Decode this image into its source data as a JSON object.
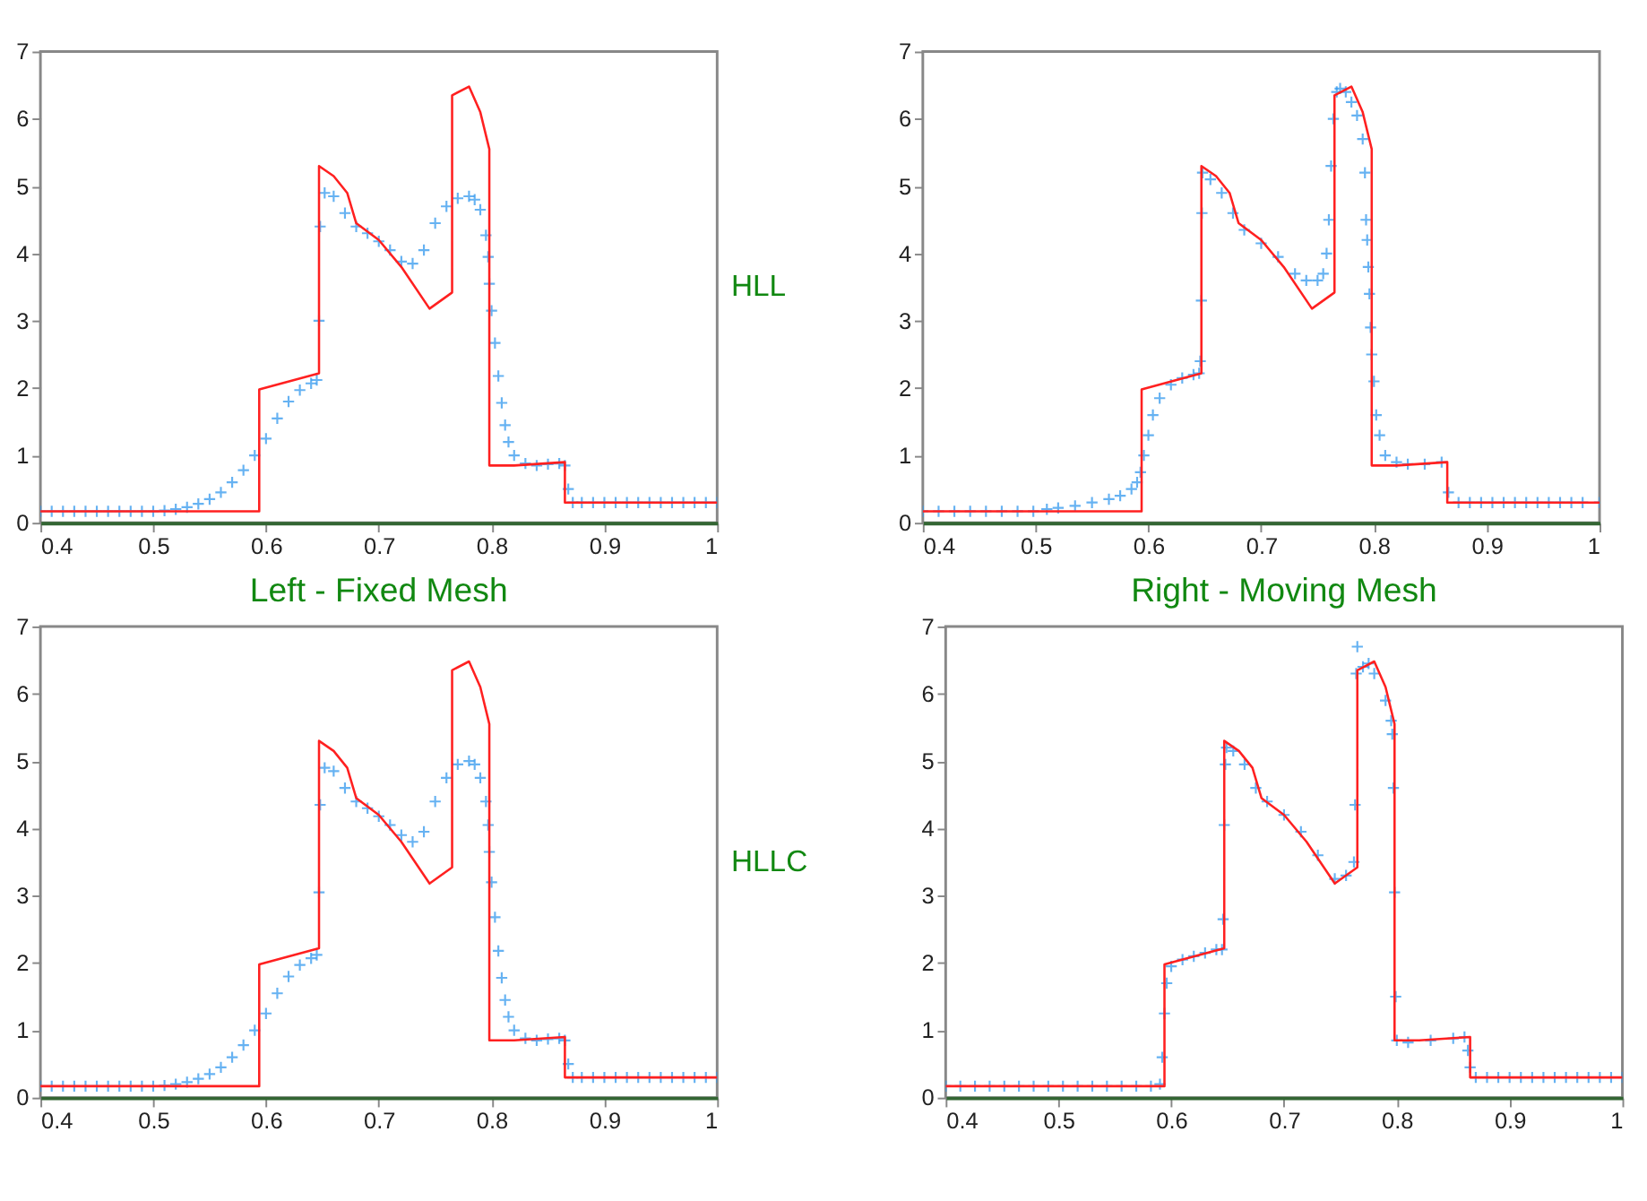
{
  "chart_data": [
    {
      "type": "line",
      "annotations": [
        "HLL"
      ],
      "xlim": [
        0.4,
        1
      ],
      "xticks": [
        0.4,
        0.5,
        0.6,
        0.7,
        0.8,
        0.9,
        1
      ],
      "ylim": [
        0,
        7
      ],
      "yticks": [
        0,
        1,
        2,
        3,
        4,
        5,
        6,
        7
      ],
      "grid": false,
      "series": [
        {
          "color": "#ff2020",
          "x": [
            0.4,
            0.594,
            0.594,
            0.647,
            0.647,
            0.66,
            0.672,
            0.68,
            0.7,
            0.72,
            0.745,
            0.765,
            0.765,
            0.78,
            0.79,
            0.798,
            0.798,
            0.82,
            0.865,
            0.865,
            1
          ],
          "values": [
            0.17,
            0.17,
            1.98,
            2.22,
            5.3,
            5.15,
            4.9,
            4.45,
            4.2,
            3.8,
            3.18,
            3.42,
            6.35,
            6.48,
            6.1,
            5.55,
            0.85,
            0.85,
            0.9,
            0.3,
            0.3
          ]
        },
        {
          "type": "scatter",
          "marker": "cross",
          "color": "#3399ee",
          "x": [
            0.4,
            0.41,
            0.42,
            0.43,
            0.44,
            0.45,
            0.46,
            0.47,
            0.48,
            0.49,
            0.5,
            0.51,
            0.52,
            0.53,
            0.54,
            0.55,
            0.56,
            0.57,
            0.58,
            0.59,
            0.6,
            0.61,
            0.62,
            0.63,
            0.64,
            0.645,
            0.647,
            0.648,
            0.652,
            0.66,
            0.67,
            0.68,
            0.69,
            0.7,
            0.71,
            0.72,
            0.73,
            0.74,
            0.75,
            0.76,
            0.77,
            0.78,
            0.785,
            0.79,
            0.795,
            0.797,
            0.798,
            0.8,
            0.803,
            0.806,
            0.809,
            0.812,
            0.815,
            0.82,
            0.83,
            0.84,
            0.85,
            0.86,
            0.865,
            0.868,
            0.872,
            0.88,
            0.89,
            0.9,
            0.91,
            0.92,
            0.93,
            0.94,
            0.95,
            0.96,
            0.97,
            0.98,
            0.99,
            1
          ],
          "values": [
            0.17,
            0.17,
            0.17,
            0.17,
            0.17,
            0.17,
            0.17,
            0.17,
            0.17,
            0.17,
            0.17,
            0.18,
            0.2,
            0.23,
            0.28,
            0.35,
            0.45,
            0.6,
            0.78,
            1.0,
            1.25,
            1.55,
            1.8,
            1.97,
            2.07,
            2.12,
            3.0,
            4.4,
            4.9,
            4.85,
            4.6,
            4.4,
            4.3,
            4.18,
            4.05,
            3.88,
            3.85,
            4.05,
            4.45,
            4.7,
            4.82,
            4.85,
            4.8,
            4.65,
            4.27,
            3.95,
            3.55,
            3.15,
            2.67,
            2.18,
            1.78,
            1.45,
            1.2,
            1.0,
            0.88,
            0.85,
            0.87,
            0.88,
            0.85,
            0.5,
            0.3,
            0.3,
            0.3,
            0.3,
            0.3,
            0.3,
            0.3,
            0.3,
            0.3,
            0.3,
            0.3,
            0.3,
            0.3,
            0.3
          ]
        }
      ]
    },
    {
      "type": "line",
      "xlim": [
        0.4,
        1
      ],
      "xticks": [
        0.4,
        0.5,
        0.6,
        0.7,
        0.8,
        0.9,
        1
      ],
      "ylim": [
        0,
        7
      ],
      "yticks": [
        0,
        1,
        2,
        3,
        4,
        5,
        6,
        7
      ],
      "grid": false,
      "series": [
        {
          "color": "#ff2020",
          "x": [
            0.4,
            0.594,
            0.594,
            0.647,
            0.647,
            0.66,
            0.672,
            0.68,
            0.7,
            0.72,
            0.745,
            0.765,
            0.765,
            0.78,
            0.79,
            0.798,
            0.798,
            0.82,
            0.865,
            0.865,
            1
          ],
          "values": [
            0.17,
            0.17,
            1.98,
            2.22,
            5.3,
            5.15,
            4.9,
            4.45,
            4.2,
            3.8,
            3.18,
            3.42,
            6.35,
            6.48,
            6.1,
            5.55,
            0.85,
            0.85,
            0.9,
            0.3,
            0.3
          ]
        },
        {
          "type": "scatter",
          "marker": "cross",
          "color": "#3399ee",
          "x": [
            0.4,
            0.414,
            0.428,
            0.442,
            0.456,
            0.47,
            0.484,
            0.498,
            0.51,
            0.52,
            0.535,
            0.55,
            0.565,
            0.575,
            0.585,
            0.59,
            0.593,
            0.596,
            0.6,
            0.604,
            0.61,
            0.62,
            0.63,
            0.64,
            0.645,
            0.646,
            0.647,
            0.6475,
            0.648,
            0.655,
            0.665,
            0.675,
            0.685,
            0.7,
            0.715,
            0.73,
            0.74,
            0.75,
            0.755,
            0.758,
            0.76,
            0.762,
            0.764,
            0.767,
            0.77,
            0.775,
            0.78,
            0.785,
            0.79,
            0.792,
            0.793,
            0.794,
            0.795,
            0.796,
            0.797,
            0.798,
            0.8,
            0.802,
            0.805,
            0.81,
            0.82,
            0.83,
            0.845,
            0.86,
            0.866,
            0.875,
            0.885,
            0.895,
            0.905,
            0.915,
            0.925,
            0.935,
            0.945,
            0.955,
            0.965,
            0.975,
            0.985,
            1
          ],
          "values": [
            0.17,
            0.17,
            0.17,
            0.17,
            0.17,
            0.17,
            0.17,
            0.17,
            0.2,
            0.22,
            0.25,
            0.3,
            0.35,
            0.4,
            0.5,
            0.6,
            0.75,
            1.0,
            1.3,
            1.6,
            1.85,
            2.05,
            2.15,
            2.2,
            2.22,
            2.4,
            3.3,
            4.6,
            5.2,
            5.1,
            4.9,
            4.6,
            4.35,
            4.15,
            3.95,
            3.7,
            3.6,
            3.6,
            3.7,
            4.0,
            4.5,
            5.3,
            6.0,
            6.4,
            6.45,
            6.4,
            6.25,
            6.05,
            5.7,
            5.2,
            4.5,
            4.2,
            3.8,
            3.4,
            2.9,
            2.5,
            2.1,
            1.6,
            1.3,
            1.0,
            0.9,
            0.87,
            0.87,
            0.9,
            0.45,
            0.3,
            0.3,
            0.3,
            0.3,
            0.3,
            0.3,
            0.3,
            0.3,
            0.3,
            0.3,
            0.3,
            0.3,
            0.3
          ]
        }
      ]
    },
    {
      "type": "line",
      "title": "Left - Fixed Mesh",
      "annotations": [
        "HLLC"
      ],
      "xlim": [
        0.4,
        1
      ],
      "xticks": [
        0.4,
        0.5,
        0.6,
        0.7,
        0.8,
        0.9,
        1
      ],
      "ylim": [
        0,
        7
      ],
      "yticks": [
        0,
        1,
        2,
        3,
        4,
        5,
        6,
        7
      ],
      "grid": false,
      "series": [
        {
          "color": "#ff2020",
          "x": [
            0.4,
            0.594,
            0.594,
            0.647,
            0.647,
            0.66,
            0.672,
            0.68,
            0.7,
            0.72,
            0.745,
            0.765,
            0.765,
            0.78,
            0.79,
            0.798,
            0.798,
            0.82,
            0.865,
            0.865,
            1
          ],
          "values": [
            0.17,
            0.17,
            1.98,
            2.22,
            5.3,
            5.15,
            4.9,
            4.45,
            4.2,
            3.8,
            3.18,
            3.42,
            6.35,
            6.48,
            6.1,
            5.55,
            0.85,
            0.85,
            0.9,
            0.3,
            0.3
          ]
        },
        {
          "type": "scatter",
          "marker": "cross",
          "color": "#3399ee",
          "x": [
            0.4,
            0.41,
            0.42,
            0.43,
            0.44,
            0.45,
            0.46,
            0.47,
            0.48,
            0.49,
            0.5,
            0.51,
            0.52,
            0.53,
            0.54,
            0.55,
            0.56,
            0.57,
            0.58,
            0.59,
            0.6,
            0.61,
            0.62,
            0.63,
            0.64,
            0.645,
            0.647,
            0.648,
            0.652,
            0.66,
            0.67,
            0.68,
            0.69,
            0.7,
            0.71,
            0.72,
            0.73,
            0.74,
            0.75,
            0.76,
            0.77,
            0.78,
            0.785,
            0.79,
            0.795,
            0.797,
            0.798,
            0.8,
            0.803,
            0.806,
            0.809,
            0.812,
            0.815,
            0.82,
            0.83,
            0.84,
            0.85,
            0.86,
            0.865,
            0.868,
            0.872,
            0.88,
            0.89,
            0.9,
            0.91,
            0.92,
            0.93,
            0.94,
            0.95,
            0.96,
            0.97,
            0.98,
            0.99,
            1
          ],
          "values": [
            0.17,
            0.17,
            0.17,
            0.17,
            0.17,
            0.17,
            0.17,
            0.17,
            0.17,
            0.17,
            0.17,
            0.18,
            0.2,
            0.23,
            0.28,
            0.35,
            0.45,
            0.6,
            0.78,
            1.0,
            1.25,
            1.55,
            1.8,
            1.97,
            2.07,
            2.12,
            3.05,
            4.35,
            4.9,
            4.85,
            4.6,
            4.4,
            4.3,
            4.18,
            4.05,
            3.9,
            3.8,
            3.95,
            4.4,
            4.75,
            4.95,
            5.0,
            4.95,
            4.75,
            4.4,
            4.05,
            3.65,
            3.2,
            2.68,
            2.18,
            1.78,
            1.45,
            1.2,
            1.0,
            0.88,
            0.85,
            0.87,
            0.88,
            0.85,
            0.5,
            0.3,
            0.3,
            0.3,
            0.3,
            0.3,
            0.3,
            0.3,
            0.3,
            0.3,
            0.3,
            0.3,
            0.3,
            0.3,
            0.3
          ]
        }
      ]
    },
    {
      "type": "line",
      "title": "Right - Moving Mesh",
      "xlim": [
        0.4,
        1
      ],
      "xticks": [
        0.4,
        0.5,
        0.6,
        0.7,
        0.8,
        0.9,
        1
      ],
      "ylim": [
        0,
        7
      ],
      "yticks": [
        0,
        1,
        2,
        3,
        4,
        5,
        6,
        7
      ],
      "grid": false,
      "series": [
        {
          "color": "#ff2020",
          "x": [
            0.4,
            0.594,
            0.594,
            0.647,
            0.647,
            0.66,
            0.672,
            0.68,
            0.7,
            0.72,
            0.745,
            0.765,
            0.765,
            0.78,
            0.79,
            0.798,
            0.798,
            0.82,
            0.865,
            0.865,
            1
          ],
          "values": [
            0.17,
            0.17,
            1.98,
            2.22,
            5.3,
            5.15,
            4.9,
            4.45,
            4.2,
            3.8,
            3.18,
            3.42,
            6.35,
            6.48,
            6.1,
            5.55,
            0.85,
            0.85,
            0.9,
            0.3,
            0.3
          ]
        },
        {
          "type": "scatter",
          "marker": "cross",
          "color": "#3399ee",
          "x": [
            0.4,
            0.413,
            0.426,
            0.439,
            0.452,
            0.465,
            0.478,
            0.491,
            0.504,
            0.517,
            0.53,
            0.543,
            0.556,
            0.569,
            0.582,
            0.59,
            0.592,
            0.594,
            0.596,
            0.6,
            0.61,
            0.62,
            0.63,
            0.64,
            0.645,
            0.646,
            0.647,
            0.648,
            0.649,
            0.655,
            0.665,
            0.675,
            0.685,
            0.7,
            0.715,
            0.73,
            0.745,
            0.755,
            0.762,
            0.763,
            0.764,
            0.765,
            0.77,
            0.775,
            0.78,
            0.79,
            0.795,
            0.796,
            0.797,
            0.798,
            0.799,
            0.8,
            0.81,
            0.83,
            0.85,
            0.86,
            0.863,
            0.865,
            0.87,
            0.88,
            0.89,
            0.9,
            0.91,
            0.92,
            0.93,
            0.94,
            0.95,
            0.96,
            0.97,
            0.98,
            0.99,
            1
          ],
          "values": [
            0.17,
            0.17,
            0.17,
            0.17,
            0.17,
            0.17,
            0.17,
            0.17,
            0.17,
            0.17,
            0.17,
            0.17,
            0.17,
            0.17,
            0.17,
            0.2,
            0.6,
            1.25,
            1.7,
            1.95,
            2.05,
            2.1,
            2.15,
            2.2,
            2.2,
            2.65,
            4.05,
            4.95,
            5.2,
            5.15,
            4.95,
            4.6,
            4.4,
            4.2,
            3.95,
            3.6,
            3.25,
            3.3,
            3.5,
            4.35,
            6.3,
            6.7,
            6.4,
            6.45,
            6.3,
            5.9,
            5.6,
            5.4,
            4.6,
            3.05,
            1.5,
            0.85,
            0.82,
            0.85,
            0.88,
            0.9,
            0.7,
            0.45,
            0.3,
            0.3,
            0.3,
            0.3,
            0.3,
            0.3,
            0.3,
            0.3,
            0.3,
            0.3,
            0.3,
            0.3,
            0.3,
            0.3
          ]
        }
      ]
    }
  ]
}
